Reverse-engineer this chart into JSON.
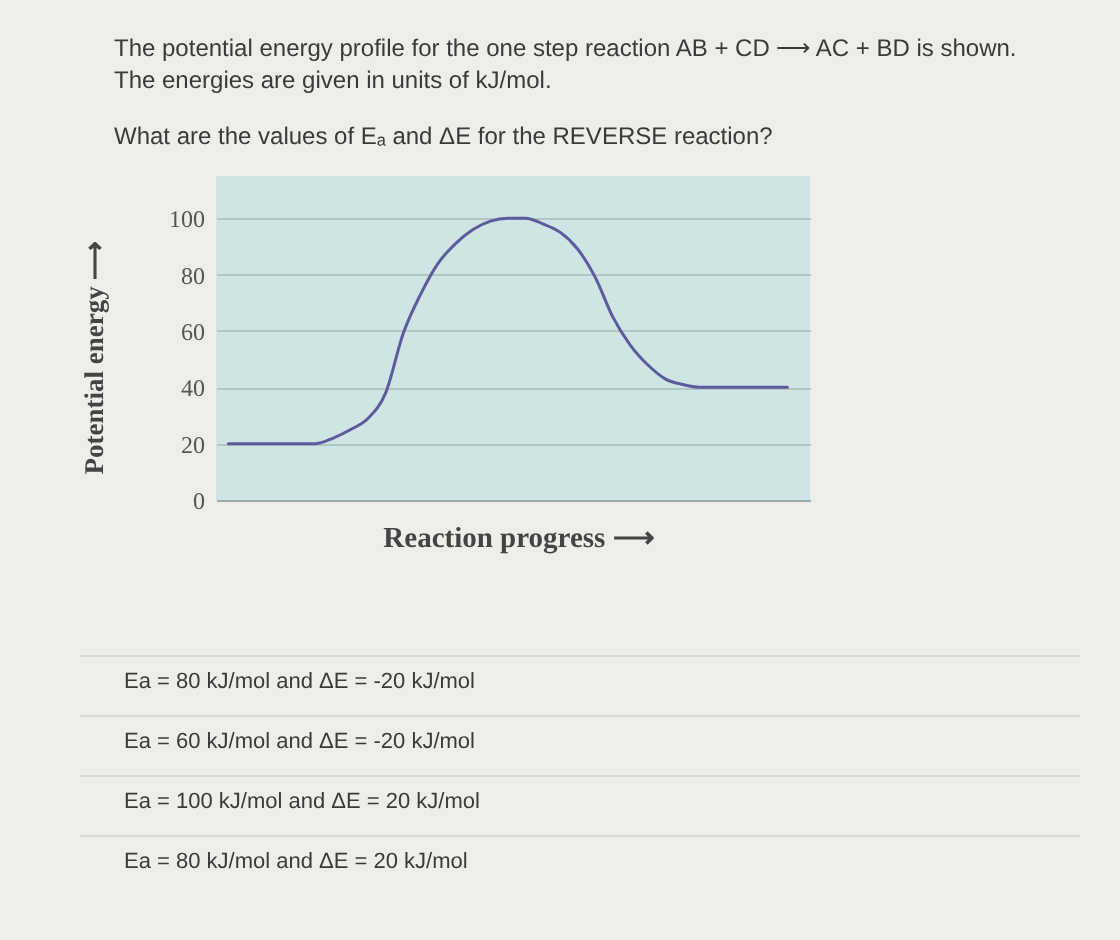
{
  "chart_data": {
    "type": "line",
    "title": "The potential energy profile for the one step reaction AB + CD ⟶ AC + BD is shown.",
    "subtitle": "The energies are given in units of kJ/mol.",
    "xlabel": "Reaction progress ⟶",
    "ylabel": "Potential energy ⟶",
    "annotations": [
      "What are the values of Eₐ and ΔE for the REVERSE reaction?",
      "Ea = 80 kJ/mol and ΔE = -20 kJ/mol",
      "Ea = 60 kJ/mol and ΔE = -20 kJ/mol",
      "Ea = 100 kJ/mol and ΔE = 20 kJ/mol",
      "Ea = 80 kJ/mol and ΔE = 20 kJ/mol"
    ],
    "categories": [
      null,
      null,
      null,
      null,
      null,
      null,
      null,
      null,
      null,
      null,
      null,
      null,
      null,
      null,
      null,
      null,
      null,
      null,
      null,
      null,
      null,
      null,
      null,
      null,
      null,
      null,
      null,
      null,
      null,
      null,
      null,
      null,
      null
    ],
    "series": [
      {
        "color": "#5a5c9c",
        "values": [
          20,
          20,
          20,
          20,
          20,
          20,
          22,
          25,
          29,
          38,
          59,
          73,
          84,
          91,
          96,
          99,
          100,
          100,
          98,
          95,
          89,
          79,
          65,
          55,
          48,
          43,
          41,
          40,
          40,
          40,
          40,
          40,
          40
        ]
      }
    ],
    "ylim": [
      0,
      115
    ],
    "yticks": [
      0,
      20,
      40,
      60,
      80,
      100
    ],
    "grid": "y"
  }
}
